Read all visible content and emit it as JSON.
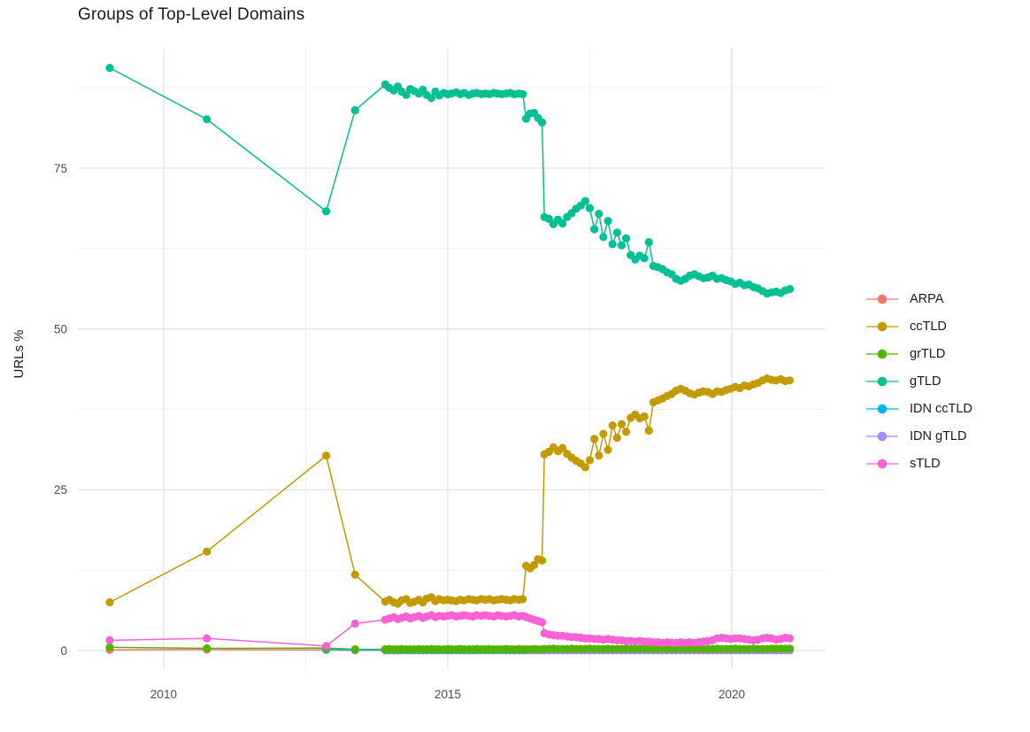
{
  "chart_data": {
    "type": "line",
    "title": "Groups of Top-Level Domains",
    "xlabel": "",
    "ylabel": "URLs %",
    "grid": true,
    "legend_position": "right",
    "x_ticks": [
      2010,
      2015,
      2020
    ],
    "x_minor": [
      2012.5,
      2017.5
    ],
    "y_ticks": [
      0,
      25,
      50,
      75
    ],
    "y_minor": [
      12.5,
      37.5,
      62.5,
      87.5
    ],
    "xlim": [
      2008.49,
      2021.65
    ],
    "ylim": [
      -2.75,
      93.58
    ],
    "x": [
      2009.05,
      2010.76,
      2012.86,
      2013.37,
      2013.9,
      2013.97,
      2014.05,
      2014.12,
      2014.19,
      2014.27,
      2014.34,
      2014.41,
      2014.49,
      2014.56,
      2014.63,
      2014.71,
      2014.78,
      2014.85,
      2014.93,
      2015.0,
      2015.07,
      2015.15,
      2015.22,
      2015.29,
      2015.37,
      2015.44,
      2015.51,
      2015.59,
      2015.66,
      2015.73,
      2015.81,
      2015.88,
      2015.95,
      2016.03,
      2016.1,
      2016.17,
      2016.25,
      2016.32,
      2016.38,
      2016.45,
      2016.52,
      2016.59,
      2016.66,
      2016.7,
      2016.78,
      2016.86,
      2016.94,
      2017.02,
      2017.1,
      2017.18,
      2017.26,
      2017.34,
      2017.42,
      2017.5,
      2017.58,
      2017.66,
      2017.74,
      2017.82,
      2017.9,
      2017.98,
      2018.06,
      2018.14,
      2018.22,
      2018.3,
      2018.38,
      2018.46,
      2018.54,
      2018.62,
      2018.7,
      2018.78,
      2018.86,
      2018.94,
      2019.02,
      2019.1,
      2019.18,
      2019.26,
      2019.34,
      2019.42,
      2019.5,
      2019.58,
      2019.66,
      2019.74,
      2019.82,
      2019.9,
      2019.98,
      2020.06,
      2020.14,
      2020.22,
      2020.3,
      2020.38,
      2020.46,
      2020.54,
      2020.62,
      2020.7,
      2020.78,
      2020.86,
      2020.94,
      2021.02
    ],
    "series": [
      {
        "name": "ARPA",
        "color": "#F8766D",
        "values": [
          0.1,
          0.15,
          0.1,
          0.05,
          0.05,
          0.05,
          0.05,
          0.05,
          0.05,
          0.05,
          0.05,
          0.05,
          0.05,
          0.05,
          0.05,
          0.05,
          0.05,
          0.05,
          0.05,
          0.05,
          0.05,
          0.05,
          0.05,
          0.05,
          0.05,
          0.05,
          0.05,
          0.05,
          0.05,
          0.05,
          0.05,
          0.05,
          0.05,
          0.05,
          0.05,
          0.05,
          0.05,
          0.05,
          0.05,
          0.05,
          0.05,
          0.05,
          0.05,
          0.05,
          0.05,
          0.05,
          0.05,
          0.05,
          0.05,
          0.05,
          0.05,
          0.05,
          0.05,
          0.05,
          0.05,
          0.05,
          0.05,
          0.05,
          0.05,
          0.05,
          0.05,
          0.05,
          0.05,
          0.05,
          0.05,
          0.05,
          0.05,
          0.05,
          0.05,
          0.05,
          0.05,
          0.05,
          0.05,
          0.05,
          0.05,
          0.05,
          0.05,
          0.05,
          0.05,
          0.05,
          0.05,
          0.05,
          0.05,
          0.05,
          0.05,
          0.05,
          0.05,
          0.05,
          0.05,
          0.05,
          0.05,
          0.05,
          0.05,
          0.05,
          0.05,
          0.05,
          0.05,
          0.05
        ]
      },
      {
        "name": "ccTLD",
        "color": "#C49A00",
        "values": [
          7.5,
          15.4,
          30.3,
          11.8,
          7.6,
          7.9,
          7.5,
          7.3,
          7.8,
          8.0,
          7.4,
          7.6,
          7.9,
          7.5,
          8.1,
          8.3,
          7.7,
          8.0,
          7.8,
          7.9,
          7.8,
          7.7,
          7.9,
          7.8,
          8.0,
          7.9,
          7.8,
          8.0,
          7.9,
          8.0,
          7.8,
          7.9,
          8.0,
          7.9,
          7.8,
          8.0,
          7.9,
          8.0,
          13.2,
          12.8,
          13.3,
          14.2,
          14.0,
          30.5,
          30.9,
          31.6,
          31.0,
          31.5,
          30.6,
          30.0,
          29.5,
          29.1,
          28.5,
          29.6,
          32.9,
          30.3,
          33.7,
          31.2,
          35.0,
          33.1,
          35.2,
          34.0,
          36.2,
          36.7,
          36.1,
          36.4,
          34.2,
          38.6,
          38.9,
          39.2,
          39.6,
          39.9,
          40.4,
          40.7,
          40.4,
          40.0,
          39.8,
          40.1,
          40.3,
          40.2,
          39.9,
          40.3,
          40.2,
          40.5,
          40.7,
          41.0,
          40.8,
          41.2,
          41.1,
          41.4,
          41.6,
          42.0,
          42.3,
          42.1,
          42.0,
          42.2,
          41.9,
          42.0
        ]
      },
      {
        "name": "grTLD",
        "color": "#53B400",
        "values": [
          0.5,
          0.35,
          0.4,
          0.2,
          0.2,
          0.25,
          0.2,
          0.2,
          0.25,
          0.2,
          0.2,
          0.2,
          0.25,
          0.2,
          0.2,
          0.25,
          0.2,
          0.2,
          0.2,
          0.25,
          0.2,
          0.2,
          0.25,
          0.2,
          0.2,
          0.2,
          0.25,
          0.2,
          0.2,
          0.25,
          0.2,
          0.2,
          0.2,
          0.25,
          0.2,
          0.2,
          0.25,
          0.2,
          0.2,
          0.2,
          0.25,
          0.2,
          0.2,
          0.25,
          0.25,
          0.3,
          0.25,
          0.25,
          0.25,
          0.3,
          0.25,
          0.25,
          0.25,
          0.3,
          0.25,
          0.25,
          0.25,
          0.3,
          0.25,
          0.25,
          0.25,
          0.3,
          0.25,
          0.25,
          0.25,
          0.3,
          0.25,
          0.25,
          0.25,
          0.3,
          0.25,
          0.25,
          0.25,
          0.3,
          0.25,
          0.25,
          0.25,
          0.3,
          0.25,
          0.25,
          0.25,
          0.3,
          0.25,
          0.25,
          0.25,
          0.3,
          0.25,
          0.25,
          0.25,
          0.3,
          0.25,
          0.25,
          0.25,
          0.3,
          0.3,
          0.3,
          0.3,
          0.3
        ]
      },
      {
        "name": "gTLD",
        "color": "#00C094",
        "values": [
          90.6,
          82.6,
          68.3,
          84.0,
          88.0,
          87.5,
          87.1,
          87.7,
          86.9,
          86.4,
          87.3,
          87.0,
          86.6,
          87.2,
          86.4,
          85.9,
          86.9,
          86.3,
          86.7,
          86.5,
          86.6,
          86.8,
          86.5,
          86.7,
          86.4,
          86.6,
          86.7,
          86.5,
          86.6,
          86.5,
          86.7,
          86.6,
          86.5,
          86.6,
          86.7,
          86.5,
          86.6,
          86.5,
          82.7,
          83.5,
          83.6,
          82.8,
          82.1,
          67.4,
          67.1,
          66.3,
          67.0,
          66.4,
          67.4,
          68.0,
          68.7,
          69.2,
          69.9,
          68.8,
          65.5,
          67.9,
          64.3,
          66.8,
          63.2,
          65.0,
          63.0,
          64.1,
          61.5,
          60.8,
          61.4,
          61.0,
          63.5,
          59.8,
          59.6,
          59.3,
          58.8,
          58.5,
          57.8,
          57.5,
          57.8,
          58.3,
          58.5,
          58.2,
          57.9,
          58.0,
          58.3,
          57.8,
          57.9,
          57.6,
          57.4,
          57.0,
          57.2,
          56.8,
          56.9,
          56.5,
          56.3,
          55.9,
          55.5,
          55.7,
          55.8,
          55.6,
          56.0,
          56.2
        ]
      },
      {
        "name": "IDN ccTLD",
        "color": "#00B6EB",
        "values": [
          null,
          null,
          0.15,
          0.1,
          0.08,
          0.08,
          0.08,
          0.08,
          0.08,
          0.08,
          0.08,
          0.08,
          0.08,
          0.08,
          0.08,
          0.08,
          0.08,
          0.08,
          0.08,
          0.08,
          0.08,
          0.08,
          0.08,
          0.08,
          0.08,
          0.08,
          0.08,
          0.08,
          0.08,
          0.08,
          0.08,
          0.08,
          0.08,
          0.08,
          0.08,
          0.08,
          0.08,
          0.08,
          0.08,
          0.08,
          0.08,
          0.08,
          0.08,
          0.08,
          0.08,
          0.08,
          0.08,
          0.08,
          0.08,
          0.08,
          0.08,
          0.08,
          0.08,
          0.08,
          0.08,
          0.08,
          0.08,
          0.08,
          0.08,
          0.08,
          0.08,
          0.08,
          0.08,
          0.08,
          0.08,
          0.08,
          0.08,
          0.08,
          0.08,
          0.08,
          0.08,
          0.08,
          0.08,
          0.08,
          0.08,
          0.08,
          0.08,
          0.08,
          0.08,
          0.08,
          0.08,
          0.08,
          0.08,
          0.08,
          0.08,
          0.08,
          0.08,
          0.08,
          0.08,
          0.08,
          0.08,
          0.08,
          0.08,
          0.08,
          0.08,
          0.08,
          0.08,
          0.08
        ]
      },
      {
        "name": "IDN gTLD",
        "color": "#A58AFF",
        "values": [
          null,
          null,
          null,
          null,
          null,
          null,
          null,
          null,
          null,
          null,
          null,
          null,
          null,
          null,
          null,
          null,
          null,
          null,
          null,
          null,
          null,
          null,
          null,
          null,
          null,
          null,
          null,
          null,
          null,
          null,
          null,
          null,
          null,
          null,
          null,
          null,
          null,
          null,
          0.05,
          0.05,
          0.05,
          0.05,
          0.05,
          0.05,
          0.05,
          0.05,
          0.05,
          0.05,
          0.05,
          0.05,
          0.05,
          0.05,
          0.05,
          0.05,
          0.05,
          0.05,
          0.05,
          0.05,
          0.05,
          0.05,
          0.05,
          0.05,
          0.05,
          0.05,
          0.05,
          0.05,
          0.05,
          0.05,
          0.05,
          0.05,
          0.05,
          0.05,
          0.05,
          0.05,
          0.05,
          0.05,
          0.05,
          0.05,
          0.05,
          0.05,
          0.05,
          0.05,
          0.05,
          0.05,
          0.05,
          0.05,
          0.05,
          0.05,
          0.05,
          0.05,
          0.05,
          0.05,
          0.05,
          0.05,
          0.05,
          0.05,
          0.05,
          0.05
        ]
      },
      {
        "name": "sTLD",
        "color": "#FB61D7",
        "values": [
          1.6,
          1.9,
          0.7,
          4.2,
          4.8,
          5.0,
          5.2,
          4.9,
          5.1,
          5.3,
          5.0,
          5.2,
          5.4,
          5.1,
          5.3,
          5.5,
          5.2,
          5.4,
          5.3,
          5.4,
          5.5,
          5.3,
          5.4,
          5.5,
          5.4,
          5.3,
          5.5,
          5.4,
          5.5,
          5.4,
          5.3,
          5.5,
          5.4,
          5.3,
          5.4,
          5.5,
          5.3,
          5.4,
          5.2,
          5.0,
          4.8,
          4.6,
          4.4,
          2.7,
          2.5,
          2.4,
          2.3,
          2.3,
          2.2,
          2.1,
          2.1,
          2.0,
          1.9,
          1.9,
          1.8,
          1.8,
          1.7,
          1.8,
          1.7,
          1.6,
          1.6,
          1.5,
          1.5,
          1.4,
          1.5,
          1.4,
          1.4,
          1.3,
          1.3,
          1.2,
          1.3,
          1.2,
          1.2,
          1.3,
          1.2,
          1.3,
          1.2,
          1.3,
          1.4,
          1.5,
          1.6,
          1.9,
          2.0,
          1.9,
          1.8,
          1.9,
          1.9,
          1.8,
          1.7,
          1.6,
          1.7,
          1.9,
          2.0,
          1.9,
          1.7,
          1.8,
          2.0,
          1.9
        ]
      }
    ]
  }
}
